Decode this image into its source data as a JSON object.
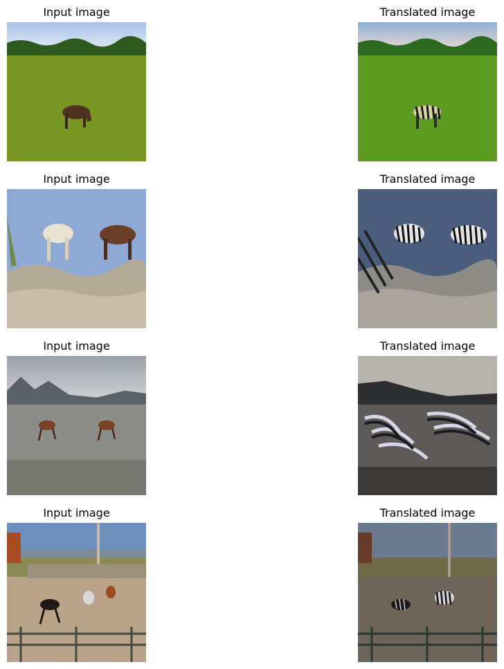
{
  "rows": [
    {
      "input_title": "Input image",
      "output_title": "Translated image",
      "input_scene": "horse-grazing-meadow",
      "output_scene": "zebra-grazing-meadow"
    },
    {
      "input_title": "Input image",
      "output_title": "Translated image",
      "input_scene": "two-horses-desert-shrubland",
      "output_scene": "two-zebras-desert-shrubland"
    },
    {
      "input_title": "Input image",
      "output_title": "Translated image",
      "input_scene": "two-horses-running-beach",
      "output_scene": "zebra-striped-beach"
    },
    {
      "input_title": "Input image",
      "output_title": "Translated image",
      "input_scene": "horses-rodeo-arena",
      "output_scene": "zebras-rodeo-arena"
    }
  ],
  "colors": {
    "grass": "#7a9a22",
    "sky": "#9bb3d6",
    "sand": "#c9b9a5",
    "horse_brown": "#5a3a24",
    "beach": "#8c8c88",
    "arena": "#b59e87"
  }
}
